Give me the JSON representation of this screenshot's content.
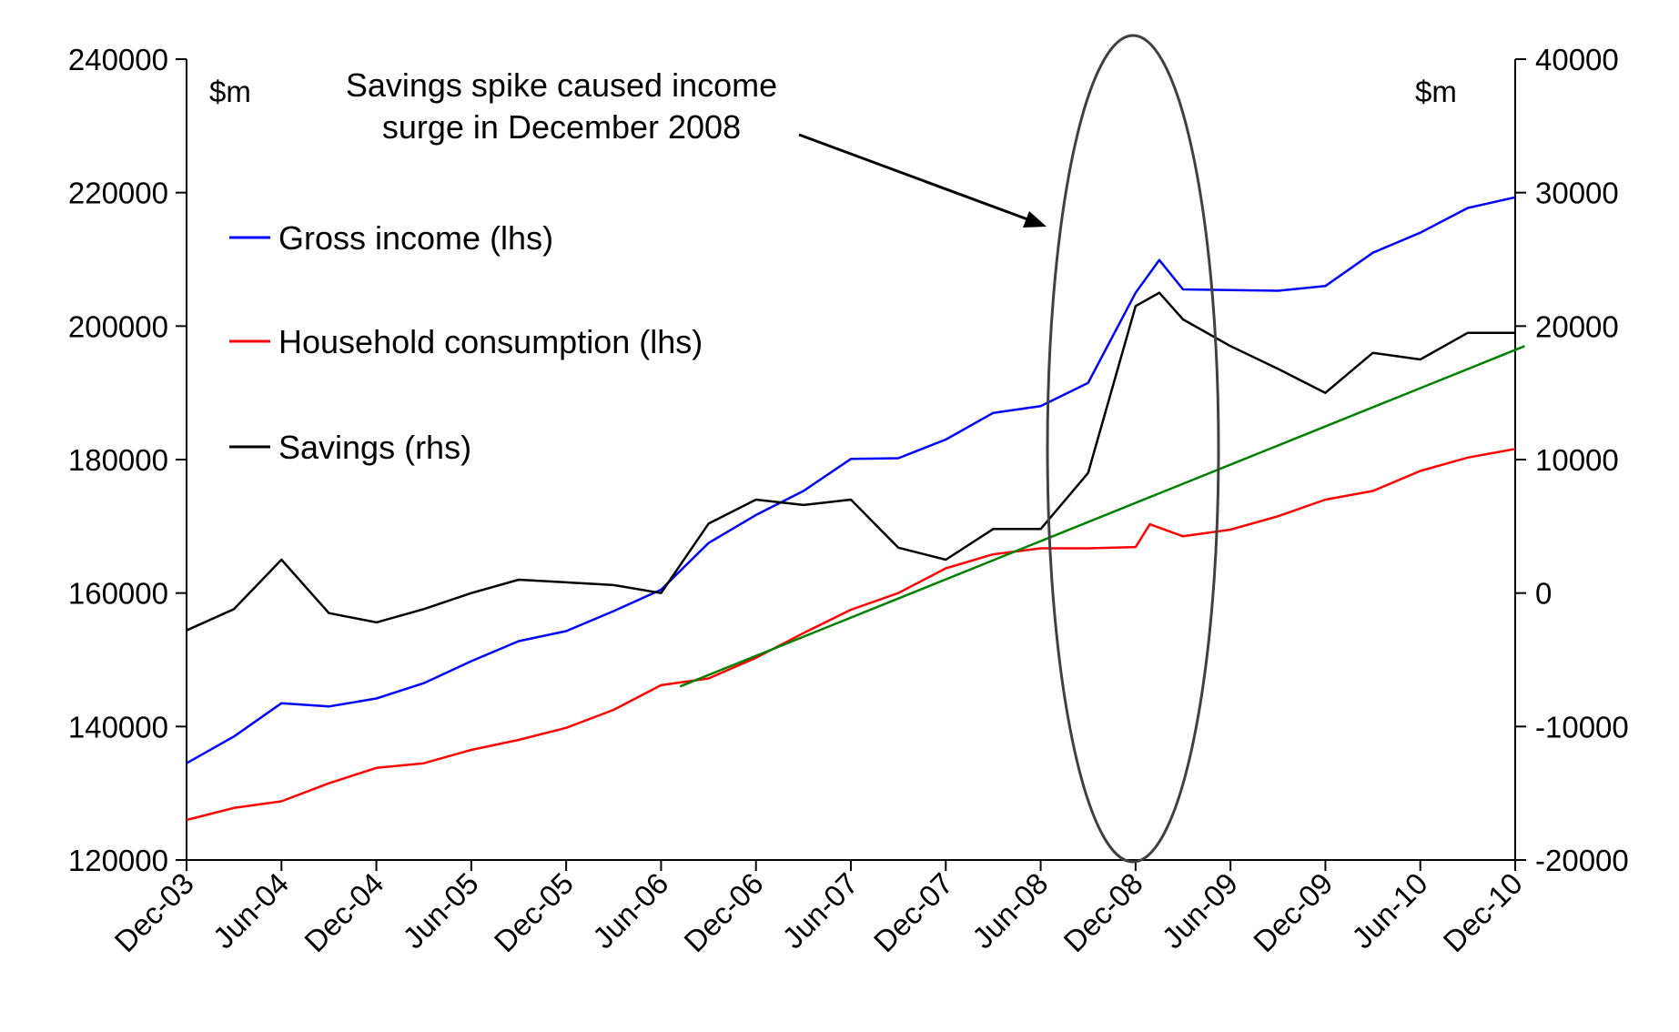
{
  "chart_data": {
    "type": "line",
    "title": "",
    "annotation": {
      "lines": [
        "Savings spike caused income",
        "surge in December 2008"
      ]
    },
    "left_axis": {
      "unit_label": "$m",
      "ylim": [
        120000,
        240000
      ],
      "ticks": [
        240000,
        220000,
        200000,
        180000,
        160000,
        140000,
        120000
      ],
      "tick_labels": [
        "240000",
        "220000",
        "200000",
        "180000",
        "160000",
        "140000",
        "120000"
      ]
    },
    "right_axis": {
      "unit_label": "$m",
      "ylim": [
        -20000,
        40000
      ],
      "ticks": [
        40000,
        30000,
        20000,
        10000,
        0,
        -10000,
        -20000
      ],
      "tick_labels": [
        "40000",
        "30000",
        "20000",
        "10000",
        "0",
        "-10000",
        "-20000"
      ]
    },
    "x_axis": {
      "range": [
        0,
        28
      ],
      "categories": [
        "Dec-03",
        "Jun-04",
        "Dec-04",
        "Jun-05",
        "Dec-05",
        "Jun-06",
        "Dec-06",
        "Jun-07",
        "Dec-07",
        "Jun-08",
        "Dec-08",
        "Jun-09",
        "Dec-09",
        "Jun-10",
        "Dec-10"
      ],
      "category_positions": [
        0,
        2,
        4,
        6,
        8,
        10,
        12,
        14,
        16,
        18,
        20,
        22,
        24,
        26,
        28
      ]
    },
    "legend": [
      {
        "label": "Gross income (lhs)",
        "color": "#0000ff"
      },
      {
        "label": "Household consumption (lhs)",
        "color": "#ff0000"
      },
      {
        "label": "Savings (rhs)",
        "color": "#000000"
      }
    ],
    "series": [
      {
        "name": "Gross income (lhs)",
        "axis": "left",
        "color": "#0000ff",
        "x": [
          0,
          1,
          2,
          3,
          4,
          5,
          6,
          7,
          8,
          9,
          10,
          11,
          12,
          13,
          14,
          15,
          16,
          17,
          18,
          19,
          20,
          20.5,
          21,
          22,
          23,
          24,
          25,
          26,
          27,
          28
        ],
        "values": [
          134500,
          138500,
          143500,
          143000,
          144200,
          146500,
          149800,
          152800,
          154300,
          157300,
          160500,
          167500,
          171700,
          175300,
          180100,
          180200,
          183000,
          187000,
          188000,
          191500,
          205000,
          209900,
          205500,
          205400,
          205300,
          206000,
          211000,
          214000,
          217700,
          219300
        ]
      },
      {
        "name": "Household consumption (lhs)",
        "axis": "left",
        "color": "#ff0000",
        "x": [
          0,
          1,
          2,
          3,
          4,
          5,
          6,
          7,
          8,
          9,
          10,
          11,
          12,
          13,
          14,
          15,
          16,
          17,
          18,
          19,
          20,
          20.3,
          21,
          22,
          23,
          24,
          25,
          26,
          27,
          28
        ],
        "values": [
          126000,
          127800,
          128800,
          131500,
          133800,
          134500,
          136500,
          138000,
          139800,
          142500,
          146200,
          147200,
          150300,
          154000,
          157500,
          160000,
          163700,
          165800,
          166700,
          166700,
          166900,
          170300,
          168500,
          169500,
          171500,
          174000,
          175300,
          178300,
          180300,
          181600
        ]
      },
      {
        "name": "Savings (rhs)",
        "axis": "right",
        "color": "#000000",
        "x": [
          0,
          1,
          2,
          3,
          4,
          5,
          6,
          7,
          8,
          9,
          10,
          11,
          12,
          13,
          14,
          15,
          16,
          17,
          18,
          19,
          20,
          20.5,
          21,
          22,
          23,
          24,
          25,
          26,
          27,
          28
        ],
        "values": [
          -2800,
          -1200,
          2500,
          -1500,
          -2200,
          -1200,
          0,
          1000,
          800,
          600,
          0,
          5200,
          7000,
          6600,
          7000,
          3400,
          2500,
          4800,
          4800,
          9000,
          21500,
          22500,
          20500,
          18500,
          16800,
          15000,
          18000,
          17500,
          19500,
          19500
        ]
      },
      {
        "name": "Trend",
        "axis": "left",
        "color": "#008000",
        "x": [
          10.4,
          28.2
        ],
        "values": [
          146000,
          197000
        ]
      }
    ]
  }
}
